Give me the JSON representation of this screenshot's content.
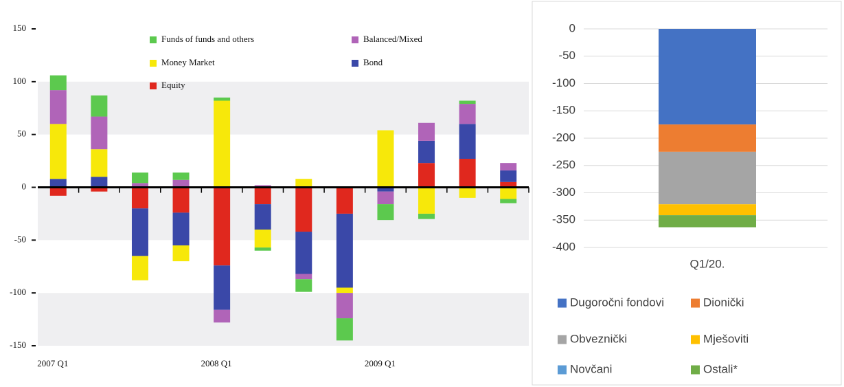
{
  "chart_data": [
    {
      "type": "bar",
      "stacked": true,
      "categories": [
        "2007 Q1",
        null,
        null,
        null,
        "2008 Q1",
        null,
        null,
        null,
        "2009 Q1",
        null,
        null,
        null
      ],
      "series": [
        {
          "name": "Funds of funds and others",
          "color": "#5cc94e",
          "values": [
            14,
            20,
            10,
            7,
            3,
            -3,
            -12,
            -21,
            -15,
            -5,
            3,
            -4
          ]
        },
        {
          "name": "Balanced/Mixed",
          "color": "#b064b8",
          "values": [
            32,
            31,
            4,
            7,
            -12,
            2,
            -5,
            -24,
            -12,
            17,
            19,
            7
          ]
        },
        {
          "name": "Money Market",
          "color": "#f7e80a",
          "values": [
            52,
            26,
            -23,
            -15,
            82,
            -17,
            8,
            -5,
            54,
            -25,
            -10,
            -11
          ]
        },
        {
          "name": "Bond",
          "color": "#3a48a8",
          "values": [
            8,
            10,
            -45,
            -31,
            -42,
            -24,
            -40,
            -70,
            -4,
            21,
            33,
            11
          ]
        },
        {
          "name": "Equity",
          "color": "#e0281e",
          "values": [
            -8,
            -4,
            -20,
            -24,
            -74,
            -16,
            -42,
            -25,
            0,
            23,
            27,
            5
          ]
        }
      ],
      "ylim": [
        -150,
        150
      ],
      "yticks": [
        150,
        100,
        50,
        0,
        -50,
        -100,
        -150
      ],
      "grid": "bands"
    },
    {
      "type": "bar",
      "stacked": true,
      "categories": [
        "Q1/20."
      ],
      "series": [
        {
          "name": "Dugoročni fondovi",
          "color": "#4472c4",
          "values": [
            -175
          ]
        },
        {
          "name": "Dionički",
          "color": "#ed7d31",
          "values": [
            -50
          ]
        },
        {
          "name": "Obveznički",
          "color": "#a5a5a5",
          "values": [
            -96
          ]
        },
        {
          "name": "Mješoviti",
          "color": "#ffc000",
          "values": [
            -20
          ]
        },
        {
          "name": "Novčani",
          "color": "#5b9bd5",
          "values": [
            0
          ]
        },
        {
          "name": "Ostali*",
          "color": "#70ad47",
          "values": [
            -22
          ]
        }
      ],
      "ylim": [
        -400,
        0
      ],
      "yticks": [
        0,
        -50,
        -100,
        -150,
        -200,
        -250,
        -300,
        -350,
        -400
      ],
      "grid": true
    }
  ]
}
